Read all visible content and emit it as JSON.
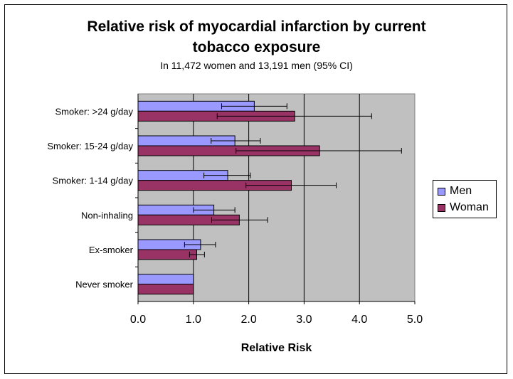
{
  "chart_data": {
    "type": "bar",
    "orientation": "horizontal",
    "title": "Relative risk of myocardial infarction by current tobacco exposure",
    "title_lines": [
      "Relative risk of myocardial infarction by current",
      "tobacco exposure"
    ],
    "subtitle": "In 11,472 women and 13,191 men (95% CI)",
    "xlabel": "Relative Risk",
    "ylabel": "",
    "xlim": [
      0,
      5
    ],
    "xticks": [
      "0.0",
      "1.0",
      "2.0",
      "3.0",
      "4.0",
      "5.0"
    ],
    "categories": [
      "Smoker: >24 g/day",
      "Smoker: 15-24 g/day",
      "Smoker: 1-14 g/day",
      "Non-inhaling",
      "Ex-smoker",
      "Never smoker"
    ],
    "series": [
      {
        "name": "Men",
        "color": "#9999ff",
        "values": [
          2.1,
          1.75,
          1.62,
          1.37,
          1.13,
          1.0
        ],
        "ci_low": [
          1.51,
          1.32,
          1.19,
          1.0,
          0.84,
          null
        ],
        "ci_high": [
          2.69,
          2.21,
          2.03,
          1.75,
          1.4,
          null
        ]
      },
      {
        "name": "Woman",
        "color": "#993366",
        "values": [
          2.83,
          3.28,
          2.77,
          1.83,
          1.06,
          1.0
        ],
        "ci_low": [
          1.43,
          1.77,
          1.95,
          1.33,
          0.93,
          null
        ],
        "ci_high": [
          4.22,
          4.76,
          3.58,
          2.34,
          1.2,
          null
        ]
      }
    ],
    "grid": true,
    "plot_background": "#c0c0c0",
    "legend_position": "right"
  }
}
